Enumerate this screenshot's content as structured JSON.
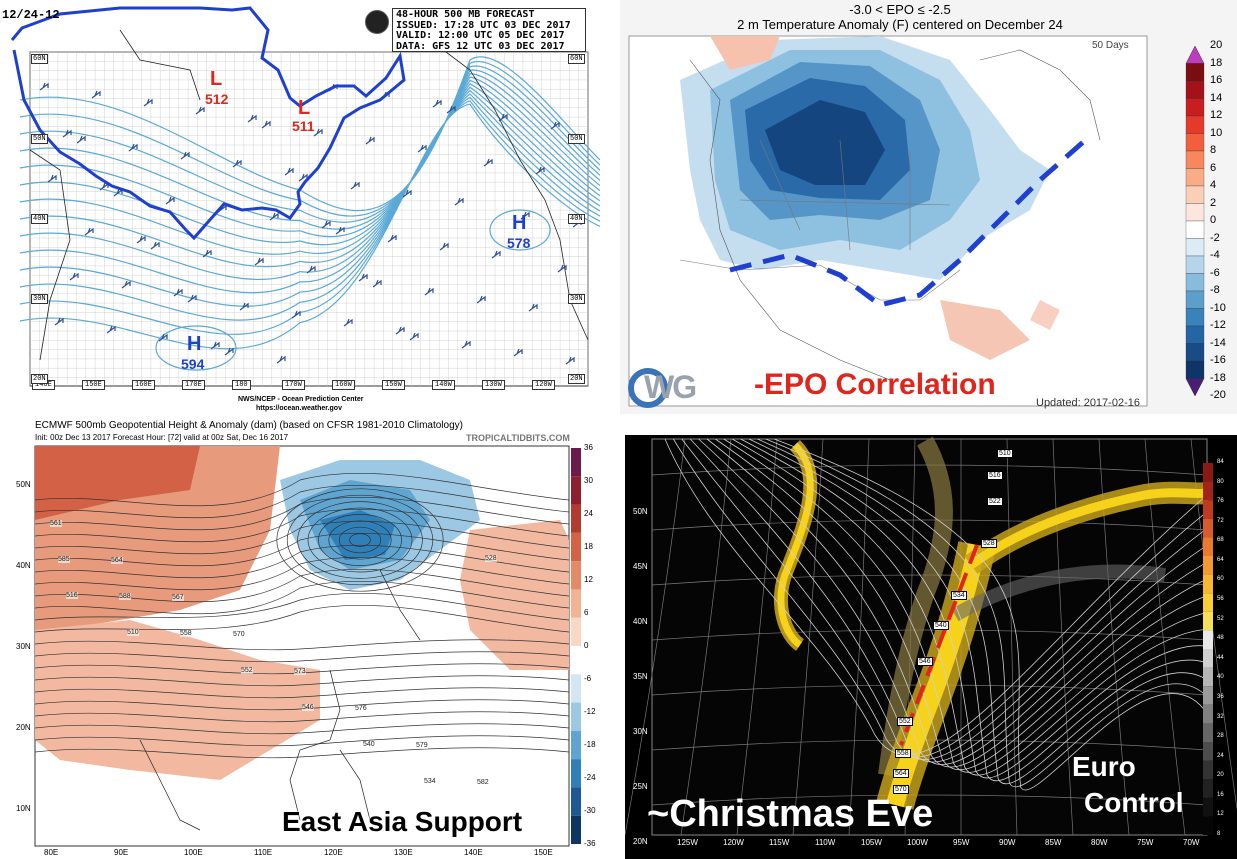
{
  "panel1": {
    "corner_label": "12/24-12",
    "header_lines": [
      "48-HOUR 500 MB FORECAST",
      "ISSUED: 17:28 UTC 03 DEC 2017",
      "VALID:  12:00 UTC 05 DEC 2017",
      "DATA:  GFS 12 UTC 03 DEC 2017"
    ],
    "lows": [
      {
        "letter": "L",
        "value": "512"
      },
      {
        "letter": "L",
        "value": "511"
      }
    ],
    "highs": [
      {
        "letter": "H",
        "value": "578"
      },
      {
        "letter": "H",
        "value": "594"
      }
    ],
    "lon_labels": [
      "140E",
      "150E",
      "160E",
      "170E",
      "180",
      "170W",
      "160W",
      "150W",
      "140W",
      "130W",
      "120W"
    ],
    "lat_labels_left": [
      "60N",
      "50N",
      "40N",
      "30N",
      "20N"
    ],
    "lat_labels_right": [
      "60N",
      "50N",
      "40N",
      "30N",
      "20N"
    ],
    "credit_line1": "NWS/NCEP - Ocean Prediction Center",
    "credit_line2": "https://ocean.weather.gov",
    "colors": {
      "outline": "#1f3fcf",
      "contour": "#5aa9d6",
      "low": "#e0251c"
    }
  },
  "panel2": {
    "title1": "-3.0 < EPO ≤ -2.5",
    "title2": "2 m Temperature Anomaly (F) centered on December 24",
    "days_label": "50 Days",
    "logo_text": "WG",
    "caption": "-EPO Correlation",
    "updated": "Updated: 2017-02-16",
    "colorbar_ticks": [
      "20",
      "18",
      "16",
      "14",
      "12",
      "10",
      "8",
      "6",
      "4",
      "2",
      "0",
      "-2",
      "-4",
      "-6",
      "-8",
      "-10",
      "-12",
      "-14",
      "-16",
      "-18",
      "-20"
    ],
    "colorbar_colors": [
      "#c03cbf",
      "#7a0d12",
      "#a31219",
      "#c81e1e",
      "#e43a2a",
      "#f25f3e",
      "#f7875c",
      "#f9ad87",
      "#fbcfb6",
      "#fde7dc",
      "#ffffff",
      "#dcebf6",
      "#b5d5ea",
      "#88bcdc",
      "#5d9fcb",
      "#3a82ba",
      "#2466a3",
      "#174c86",
      "#0e3568",
      "#4b1d7a"
    ],
    "caption_color": "#e0251c",
    "dash_color": "#1f3fcf"
  },
  "panel3": {
    "title": "ECMWF 500mb Geopotential Height & Anomaly (dam) (based on CFSR 1981-2010 Climatology)",
    "subtitle": "Init: 00z Dec 13 2017   Forecast Hour: [72]   valid at 00z Sat, Dec 16 2017",
    "site": "TROPICALTIDBITS.COM",
    "lat_labels": [
      "50N",
      "40N",
      "30N",
      "20N",
      "10N"
    ],
    "lon_labels": [
      "80E",
      "90E",
      "100E",
      "110E",
      "120E",
      "130E",
      "140E",
      "150E"
    ],
    "colorbar_ticks": [
      "36",
      "30",
      "24",
      "18",
      "12",
      "6",
      "0",
      "-6",
      "-12",
      "-18",
      "-24",
      "-30",
      "-36"
    ],
    "colorbar_colors": [
      "#6b1a49",
      "#8e1f2f",
      "#b33a2e",
      "#d36145",
      "#e58a67",
      "#f1b393",
      "#f8d7c3",
      "#ffffff",
      "#d4e6f2",
      "#9cc8e3",
      "#5fa5d1",
      "#2f7fb9",
      "#1d5a94",
      "#0f3563"
    ],
    "caption": "East Asia Support",
    "contour_labels": [
      "561",
      "564",
      "567",
      "570",
      "573",
      "576",
      "579",
      "582",
      "585",
      "588",
      "558",
      "552",
      "546",
      "540",
      "534",
      "528",
      "516",
      "510"
    ]
  },
  "panel4": {
    "lat_labels": [
      "50N",
      "45N",
      "40N",
      "35N",
      "30N",
      "25N",
      "20N"
    ],
    "lon_labels": [
      "125W",
      "120W",
      "115W",
      "110W",
      "105W",
      "100W",
      "95W",
      "90W",
      "85W",
      "80W",
      "75W",
      "70W"
    ],
    "box_labels": [
      "510",
      "516",
      "522",
      "528",
      "534",
      "540",
      "546",
      "552",
      "558",
      "564",
      "570"
    ],
    "colorbar_ticks": [
      "84",
      "80",
      "76",
      "72",
      "68",
      "64",
      "60",
      "56",
      "52",
      "48",
      "44",
      "40",
      "36",
      "32",
      "28",
      "24",
      "20",
      "16",
      "12",
      "8"
    ],
    "caption": "~Christmas Eve",
    "caption2_line1": "Euro",
    "caption2_line2": "Control",
    "jet_color": "#f6d21a",
    "axis_color": "#e0251c"
  }
}
